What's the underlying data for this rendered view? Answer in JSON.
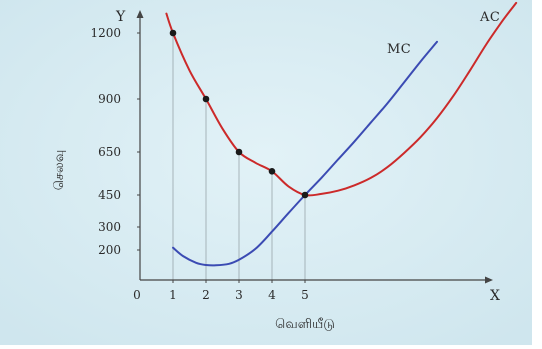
{
  "colors": {
    "panel": "#d7ecf2",
    "panel_edge": "#b9d6e0",
    "grid": "#8f9ba0",
    "axis": "#444444",
    "ac": "#cc2a2a",
    "mc": "#3b4bb3",
    "point": "#1a1a1a"
  },
  "chart_data": {
    "type": "line",
    "title": "",
    "xlabel": "வெளியீடு",
    "ylabel": "செலவு",
    "x_axis_letter": "X",
    "y_axis_letter": "Y",
    "origin_label": "0",
    "xlim": [
      0,
      12
    ],
    "ylim": [
      0,
      1400
    ],
    "x_ticks": [
      0,
      1,
      2,
      3,
      4,
      5
    ],
    "y_ticks": [
      200,
      300,
      450,
      650,
      900,
      1200
    ],
    "grid": "vertical drop lines from points",
    "legend": "inline curve labels",
    "series": [
      {
        "name": "AC",
        "color": "#cc2a2a",
        "x": [
          0.8,
          1,
          1.5,
          2,
          2.5,
          3,
          3.5,
          4,
          4.5,
          5,
          5.5,
          6,
          6.5,
          7,
          7.5,
          8,
          8.5,
          9,
          9.5,
          10,
          10.5,
          11,
          11.4
        ],
        "y": [
          1290,
          1200,
          1030,
          900,
          760,
          650,
          600,
          560,
          490,
          450,
          455,
          470,
          495,
          530,
          580,
          645,
          720,
          810,
          915,
          1030,
          1150,
          1260,
          1340
        ]
      },
      {
        "name": "MC",
        "color": "#3b4bb3",
        "x": [
          1,
          1.3,
          1.7,
          2,
          2.3,
          2.7,
          3,
          3.5,
          4,
          4.5,
          5,
          5.5,
          6,
          6.5,
          7,
          7.5,
          8,
          8.5,
          9
        ],
        "y": [
          210,
          160,
          115,
          100,
          98,
          108,
          135,
          205,
          280,
          365,
          450,
          530,
          615,
          700,
          790,
          880,
          975,
          1070,
          1160
        ]
      }
    ],
    "points": [
      {
        "x": 1,
        "y": 1200
      },
      {
        "x": 2,
        "y": 900
      },
      {
        "x": 3,
        "y": 650
      },
      {
        "x": 4,
        "y": 560
      },
      {
        "x": 5,
        "y": 450
      }
    ]
  }
}
